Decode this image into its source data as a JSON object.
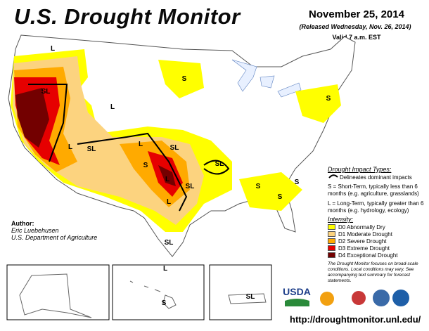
{
  "header": {
    "title": "U.S. Drought Monitor",
    "date": "November 25, 2014",
    "released": "(Released Wednesday, Nov. 26, 2014)",
    "valid": "Valid 7 a.m. EST"
  },
  "legend": {
    "impact_title": "Drought Impact Types:",
    "delineates": "Delineates dominant impacts",
    "short_term": "S = Short-Term, typically less than 6 months (e.g. agriculture, grasslands)",
    "long_term": "L = Long-Term, typically greater than 6 months (e.g. hydrology, ecology)",
    "intensity_title": "Intensity:",
    "intensity": [
      {
        "label": "D0 Abnormally Dry",
        "color": "#ffff00"
      },
      {
        "label": "D1 Moderate Drought",
        "color": "#fcd37f"
      },
      {
        "label": "D2 Severe Drought",
        "color": "#ffaa00"
      },
      {
        "label": "D3 Extreme Drought",
        "color": "#e60000"
      },
      {
        "label": "D4 Exceptional Drought",
        "color": "#730000"
      }
    ]
  },
  "note": "The Drought Monitor focuses on broad-scale conditions. Local conditions may vary. See accompanying text summary for forecast statements.",
  "author": {
    "label": "Author:",
    "name": "Eric Luebehusen",
    "agency": "U.S. Department of Agriculture"
  },
  "url": "http://droughtmonitor.unl.edu/",
  "map_labels": [
    "L",
    "SL",
    "L",
    "S",
    "S",
    "L",
    "SL",
    "L",
    "SL",
    "SL",
    "S",
    "L",
    "SL",
    "S",
    "S",
    "S",
    "L",
    "SL",
    "L",
    "S",
    "SL"
  ],
  "logos": [
    "USDA"
  ]
}
